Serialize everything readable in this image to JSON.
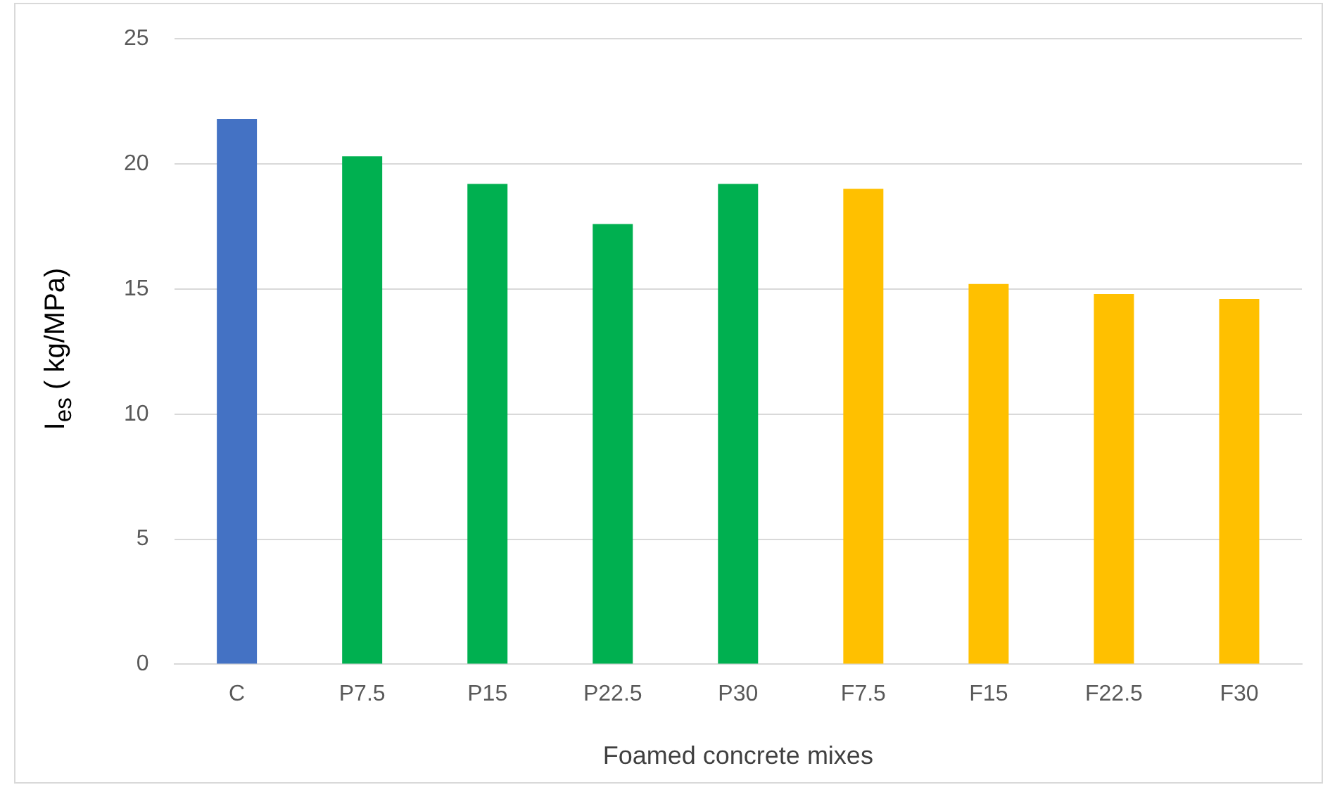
{
  "chart_data": {
    "type": "bar",
    "xlabel": "Foamed concrete mixes",
    "ylabel": "I$_{es}$ ( kg/MPa)",
    "categories": [
      "C",
      "P7.5",
      "P15",
      "P22.5",
      "P30",
      "F7.5",
      "F15",
      "F22.5",
      "F30"
    ],
    "values": [
      21.8,
      20.3,
      19.2,
      17.6,
      19.2,
      19.0,
      15.2,
      14.8,
      14.6
    ],
    "colors": [
      "#4472c4",
      "#00b050",
      "#00b050",
      "#00b050",
      "#00b050",
      "#ffc000",
      "#ffc000",
      "#ffc000",
      "#ffc000"
    ],
    "ylim": [
      0,
      25
    ],
    "yticks": [
      0,
      5,
      10,
      15,
      20,
      25
    ],
    "grid": "y",
    "legend": false
  }
}
